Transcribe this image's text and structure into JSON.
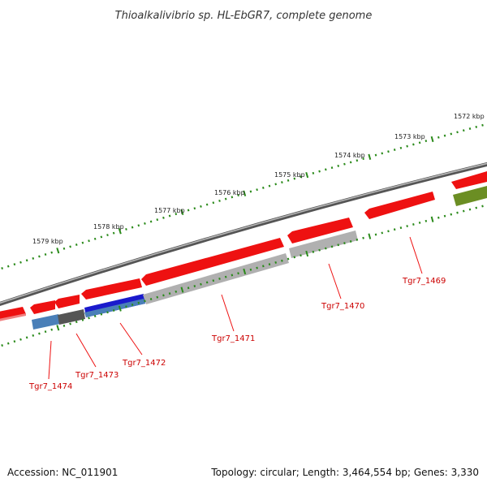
{
  "title": "Thioalkalivibrio sp. HL-EbGR7, complete genome",
  "footer": {
    "accession": "Accession: NC_011901",
    "topology": "Topology: circular; Length: 3,464,554 bp; Genes: 3,330"
  },
  "ticks": [
    "1572 kbp",
    "1573 kbp",
    "1574 kbp",
    "1575 kbp",
    "1576 kbp",
    "1577 kbp",
    "1578 kbp",
    "1579 kbp"
  ],
  "gene_labels": [
    "Tgr7_1469",
    "Tgr7_1470",
    "Tgr7_1471",
    "Tgr7_1472",
    "Tgr7_1473",
    "Tgr7_1474"
  ],
  "colors": {
    "backbone": "#777777",
    "tick": "#2a8a1a",
    "forward_gene": "#ee1111",
    "gene_label": "#cc0000",
    "cog_gray": "#aaaaaa",
    "cog_dark": "#555555",
    "cog_blue": "#1a1acc",
    "cog_steelblue": "#4a7fb8",
    "cog_olive": "#6b8e23"
  }
}
